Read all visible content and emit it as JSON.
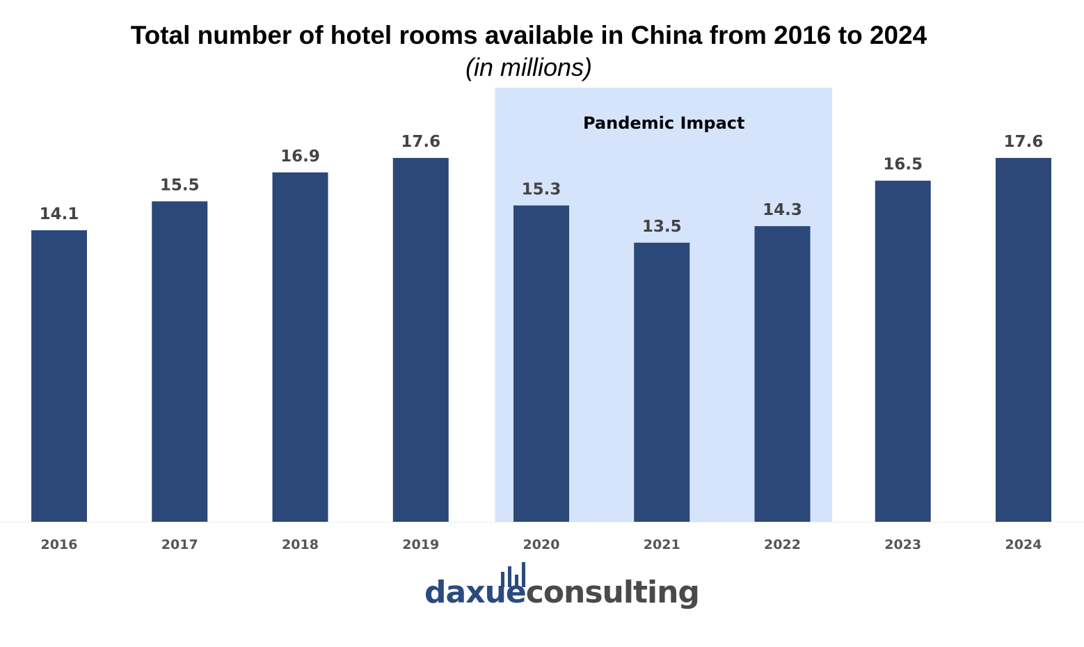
{
  "chart_data": {
    "type": "bar",
    "title": "Total number of hotel rooms available in China from 2016 to 2024",
    "subtitle": "(in millions)",
    "categories": [
      "2016",
      "2017",
      "2018",
      "2019",
      "2020",
      "2021",
      "2022",
      "2023",
      "2024"
    ],
    "values": [
      14.1,
      15.5,
      16.9,
      17.6,
      15.3,
      13.5,
      14.3,
      16.5,
      17.6
    ],
    "value_labels": [
      "14.1",
      "15.5",
      "16.9",
      "17.6",
      "15.3",
      "13.5",
      "14.3",
      "16.5",
      "17.6"
    ],
    "ylim": [
      0,
      17.6
    ],
    "grid": false,
    "legend": "none",
    "bar_color": "#2b4878",
    "annotation": {
      "label": "Pandemic Impact",
      "from_category": "2020",
      "to_category": "2022",
      "color": "#d6e4fb"
    }
  },
  "logo": {
    "part1": "daxue",
    "part2": "consulting"
  }
}
